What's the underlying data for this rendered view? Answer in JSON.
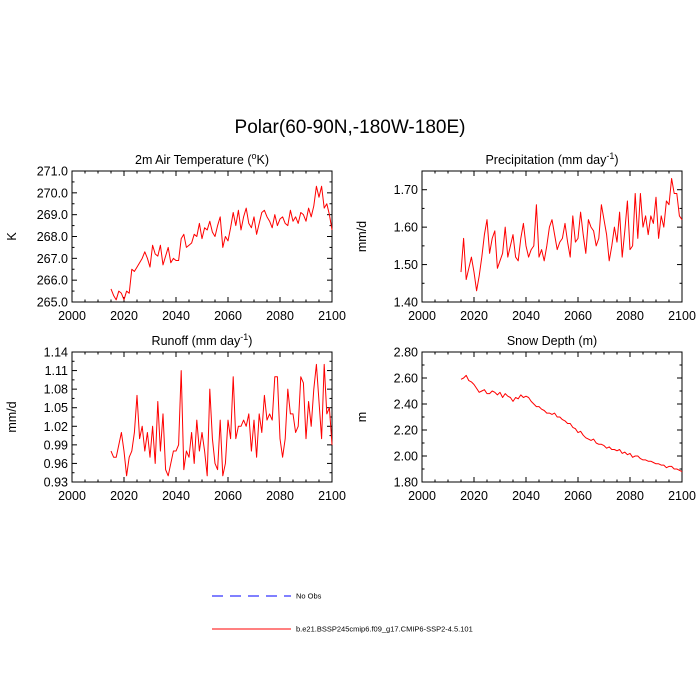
{
  "figure": {
    "title": "Polar(60-90N,-180W-180E)"
  },
  "series_colors": {
    "model": "#ff0000",
    "obs": "#0000ff"
  },
  "legend": {
    "items": [
      {
        "label": "No Obs",
        "style": "dashed",
        "color": "#0000ff"
      },
      {
        "label": "b.e21.BSSP245cmip6.f09_g17.CMIP6-SSP2-4.5.101",
        "style": "solid",
        "color": "#ff0000"
      }
    ]
  },
  "chart_data": [
    {
      "type": "line",
      "title": "2m Air Temperature (",
      "title_sup": "o",
      "title_suffix": "K)",
      "xlabel": "",
      "ylabel": "K",
      "xlim": [
        2000,
        2100
      ],
      "ylim": [
        265.0,
        271.0
      ],
      "xticks": [
        2000,
        2020,
        2040,
        2060,
        2080,
        2100
      ],
      "xtick_labels": [
        "2000",
        "2020",
        "2040",
        "2060",
        "2080",
        "2100"
      ],
      "yticks": [
        265.0,
        266.0,
        267.0,
        268.0,
        269.0,
        270.0,
        271.0
      ],
      "ytick_labels": [
        "265.0",
        "266.0",
        "267.0",
        "268.0",
        "269.0",
        "270.0",
        "271.0"
      ],
      "series": [
        {
          "name": "b.e21.BSSP245cmip6.f09_g17.CMIP6-SSP2-4.5.101",
          "x": [
            2015,
            2016,
            2017,
            2018,
            2019,
            2020,
            2021,
            2022,
            2023,
            2024,
            2025,
            2026,
            2027,
            2028,
            2029,
            2030,
            2031,
            2032,
            2033,
            2034,
            2035,
            2036,
            2037,
            2038,
            2039,
            2040,
            2041,
            2042,
            2043,
            2044,
            2045,
            2046,
            2047,
            2048,
            2049,
            2050,
            2051,
            2052,
            2053,
            2054,
            2055,
            2056,
            2057,
            2058,
            2059,
            2060,
            2061,
            2062,
            2063,
            2064,
            2065,
            2066,
            2067,
            2068,
            2069,
            2070,
            2071,
            2072,
            2073,
            2074,
            2075,
            2076,
            2077,
            2078,
            2079,
            2080,
            2081,
            2082,
            2083,
            2084,
            2085,
            2086,
            2087,
            2088,
            2089,
            2090,
            2091,
            2092,
            2093,
            2094,
            2095,
            2096,
            2097,
            2098,
            2099,
            2100
          ],
          "values": [
            265.6,
            265.3,
            265.1,
            265.5,
            265.4,
            265.1,
            265.5,
            265.4,
            266.5,
            266.4,
            266.6,
            266.8,
            267.0,
            267.3,
            267.0,
            266.6,
            267.6,
            267.2,
            267.1,
            267.6,
            266.7,
            267.1,
            267.5,
            266.8,
            267.0,
            266.9,
            266.9,
            267.9,
            268.1,
            267.5,
            267.6,
            267.7,
            268.1,
            268.0,
            268.6,
            267.9,
            268.4,
            268.3,
            268.7,
            268.2,
            268.0,
            268.5,
            268.9,
            267.5,
            268.0,
            267.8,
            268.4,
            269.1,
            268.5,
            269.2,
            268.3,
            268.9,
            269.3,
            268.6,
            268.4,
            268.9,
            268.1,
            268.6,
            269.1,
            269.2,
            268.9,
            268.7,
            268.4,
            269.0,
            268.5,
            268.8,
            268.9,
            268.6,
            268.5,
            269.2,
            268.7,
            268.9,
            268.6,
            269.1,
            269.0,
            268.7,
            269.3,
            268.9,
            269.4,
            270.3,
            269.8,
            270.3,
            269.3,
            269.5,
            269.0,
            268.3
          ]
        }
      ]
    },
    {
      "type": "line",
      "title": "Precipitation (mm day",
      "title_sup": "-1",
      "title_suffix": ")",
      "xlabel": "",
      "ylabel": "mm/d",
      "xlim": [
        2000,
        2100
      ],
      "ylim": [
        1.4,
        1.75
      ],
      "xticks": [
        2000,
        2020,
        2040,
        2060,
        2080,
        2100
      ],
      "xtick_labels": [
        "2000",
        "2020",
        "2040",
        "2060",
        "2080",
        "2100"
      ],
      "yticks": [
        1.4,
        1.5,
        1.6,
        1.7
      ],
      "ytick_labels": [
        "1.40",
        "1.50",
        "1.60",
        "1.70"
      ],
      "series": [
        {
          "name": "b.e21.BSSP245cmip6.f09_g17.CMIP6-SSP2-4.5.101",
          "x": [
            2015,
            2016,
            2017,
            2018,
            2019,
            2020,
            2021,
            2022,
            2023,
            2024,
            2025,
            2026,
            2027,
            2028,
            2029,
            2030,
            2031,
            2032,
            2033,
            2034,
            2035,
            2036,
            2037,
            2038,
            2039,
            2040,
            2041,
            2042,
            2043,
            2044,
            2045,
            2046,
            2047,
            2048,
            2049,
            2050,
            2051,
            2052,
            2053,
            2054,
            2055,
            2056,
            2057,
            2058,
            2059,
            2060,
            2061,
            2062,
            2063,
            2064,
            2065,
            2066,
            2067,
            2068,
            2069,
            2070,
            2071,
            2072,
            2073,
            2074,
            2075,
            2076,
            2077,
            2078,
            2079,
            2080,
            2081,
            2082,
            2083,
            2084,
            2085,
            2086,
            2087,
            2088,
            2089,
            2090,
            2091,
            2092,
            2093,
            2094,
            2095,
            2096,
            2097,
            2098,
            2099,
            2100
          ],
          "values": [
            1.48,
            1.57,
            1.46,
            1.49,
            1.52,
            1.48,
            1.43,
            1.47,
            1.52,
            1.58,
            1.62,
            1.53,
            1.57,
            1.59,
            1.49,
            1.51,
            1.53,
            1.6,
            1.52,
            1.55,
            1.58,
            1.52,
            1.51,
            1.57,
            1.61,
            1.55,
            1.52,
            1.54,
            1.55,
            1.66,
            1.52,
            1.54,
            1.51,
            1.55,
            1.6,
            1.62,
            1.58,
            1.54,
            1.56,
            1.57,
            1.61,
            1.56,
            1.52,
            1.63,
            1.56,
            1.57,
            1.64,
            1.58,
            1.53,
            1.62,
            1.6,
            1.59,
            1.55,
            1.57,
            1.66,
            1.62,
            1.58,
            1.51,
            1.55,
            1.6,
            1.56,
            1.64,
            1.52,
            1.59,
            1.67,
            1.54,
            1.55,
            1.69,
            1.57,
            1.69,
            1.6,
            1.63,
            1.58,
            1.63,
            1.61,
            1.68,
            1.57,
            1.63,
            1.6,
            1.67,
            1.66,
            1.73,
            1.69,
            1.69,
            1.63,
            1.62
          ]
        }
      ]
    },
    {
      "type": "line",
      "title": "Runoff (mm day",
      "title_sup": "-1",
      "title_suffix": ")",
      "xlabel": "",
      "ylabel": "mm/d",
      "xlim": [
        2000,
        2100
      ],
      "ylim": [
        0.93,
        1.14
      ],
      "xticks": [
        2000,
        2020,
        2040,
        2060,
        2080,
        2100
      ],
      "xtick_labels": [
        "2000",
        "2020",
        "2040",
        "2060",
        "2080",
        "2100"
      ],
      "yticks": [
        0.93,
        0.96,
        0.99,
        1.02,
        1.05,
        1.08,
        1.11,
        1.14
      ],
      "ytick_labels": [
        "0.93",
        "0.96",
        "0.99",
        "1.02",
        "1.05",
        "1.08",
        "1.11",
        "1.14"
      ],
      "series": [
        {
          "name": "b.e21.BSSP245cmip6.f09_g17.CMIP6-SSP2-4.5.101",
          "x": [
            2015,
            2016,
            2017,
            2018,
            2019,
            2020,
            2021,
            2022,
            2023,
            2024,
            2025,
            2026,
            2027,
            2028,
            2029,
            2030,
            2031,
            2032,
            2033,
            2034,
            2035,
            2036,
            2037,
            2038,
            2039,
            2040,
            2041,
            2042,
            2043,
            2044,
            2045,
            2046,
            2047,
            2048,
            2049,
            2050,
            2051,
            2052,
            2053,
            2054,
            2055,
            2056,
            2057,
            2058,
            2059,
            2060,
            2061,
            2062,
            2063,
            2064,
            2065,
            2066,
            2067,
            2068,
            2069,
            2070,
            2071,
            2072,
            2073,
            2074,
            2075,
            2076,
            2077,
            2078,
            2079,
            2080,
            2081,
            2082,
            2083,
            2084,
            2085,
            2086,
            2087,
            2088,
            2089,
            2090,
            2091,
            2092,
            2093,
            2094,
            2095,
            2096,
            2097,
            2098,
            2099,
            2100
          ],
          "values": [
            0.98,
            0.97,
            0.97,
            0.99,
            1.01,
            0.98,
            0.94,
            0.97,
            0.98,
            1.01,
            1.07,
            1.0,
            1.02,
            0.98,
            1.01,
            0.97,
            1.02,
            0.96,
            1.06,
            0.98,
            1.04,
            0.95,
            0.94,
            0.96,
            0.98,
            0.98,
            0.99,
            1.11,
            0.95,
            0.98,
            0.97,
            1.01,
            0.96,
            1.03,
            0.98,
            1.01,
            0.98,
            0.94,
            1.08,
            1.0,
            0.96,
            0.95,
            1.03,
            0.94,
            0.96,
            1.03,
            1.0,
            1.1,
            1.0,
            1.02,
            1.02,
            1.03,
            1.02,
            1.04,
            0.98,
            1.03,
            0.97,
            1.04,
            1.01,
            1.07,
            1.03,
            1.04,
            1.03,
            1.1,
            1.1,
            1.0,
            0.97,
            1.0,
            1.08,
            1.04,
            1.04,
            1.01,
            1.02,
            1.1,
            1.09,
            1.0,
            1.06,
            1.02,
            1.08,
            1.12,
            1.06,
            1.0,
            1.12,
            1.04,
            1.05,
            0.99
          ]
        }
      ]
    },
    {
      "type": "line",
      "title": "Snow Depth (m)",
      "title_sup": "",
      "title_suffix": "",
      "xlabel": "",
      "ylabel": "m",
      "xlim": [
        2000,
        2100
      ],
      "ylim": [
        1.8,
        2.8
      ],
      "xticks": [
        2000,
        2020,
        2040,
        2060,
        2080,
        2100
      ],
      "xtick_labels": [
        "2000",
        "2020",
        "2040",
        "2060",
        "2080",
        "2100"
      ],
      "yticks": [
        1.8,
        2.0,
        2.2,
        2.4,
        2.6,
        2.8
      ],
      "ytick_labels": [
        "1.80",
        "2.00",
        "2.20",
        "2.40",
        "2.60",
        "2.80"
      ],
      "series": [
        {
          "name": "b.e21.BSSP245cmip6.f09_g17.CMIP6-SSP2-4.5.101",
          "x": [
            2015,
            2016,
            2017,
            2018,
            2019,
            2020,
            2021,
            2022,
            2023,
            2024,
            2025,
            2026,
            2027,
            2028,
            2029,
            2030,
            2031,
            2032,
            2033,
            2034,
            2035,
            2036,
            2037,
            2038,
            2039,
            2040,
            2041,
            2042,
            2043,
            2044,
            2045,
            2046,
            2047,
            2048,
            2049,
            2050,
            2051,
            2052,
            2053,
            2054,
            2055,
            2056,
            2057,
            2058,
            2059,
            2060,
            2061,
            2062,
            2063,
            2064,
            2065,
            2066,
            2067,
            2068,
            2069,
            2070,
            2071,
            2072,
            2073,
            2074,
            2075,
            2076,
            2077,
            2078,
            2079,
            2080,
            2081,
            2082,
            2083,
            2084,
            2085,
            2086,
            2087,
            2088,
            2089,
            2090,
            2091,
            2092,
            2093,
            2094,
            2095,
            2096,
            2097,
            2098,
            2099,
            2100
          ],
          "values": [
            2.59,
            2.6,
            2.62,
            2.58,
            2.57,
            2.55,
            2.52,
            2.49,
            2.5,
            2.51,
            2.48,
            2.48,
            2.5,
            2.49,
            2.47,
            2.49,
            2.45,
            2.48,
            2.46,
            2.45,
            2.42,
            2.45,
            2.44,
            2.47,
            2.45,
            2.46,
            2.45,
            2.42,
            2.4,
            2.38,
            2.38,
            2.36,
            2.35,
            2.33,
            2.33,
            2.32,
            2.33,
            2.3,
            2.3,
            2.28,
            2.27,
            2.25,
            2.25,
            2.22,
            2.21,
            2.18,
            2.19,
            2.16,
            2.14,
            2.13,
            2.12,
            2.13,
            2.1,
            2.09,
            2.09,
            2.08,
            2.06,
            2.07,
            2.05,
            2.05,
            2.04,
            2.05,
            2.02,
            2.03,
            2.01,
            2.02,
            1.99,
            2.0,
            2.0,
            1.98,
            1.97,
            1.97,
            1.96,
            1.96,
            1.95,
            1.94,
            1.94,
            1.93,
            1.93,
            1.91,
            1.92,
            1.92,
            1.9,
            1.9,
            1.89,
            1.88
          ]
        }
      ]
    }
  ]
}
